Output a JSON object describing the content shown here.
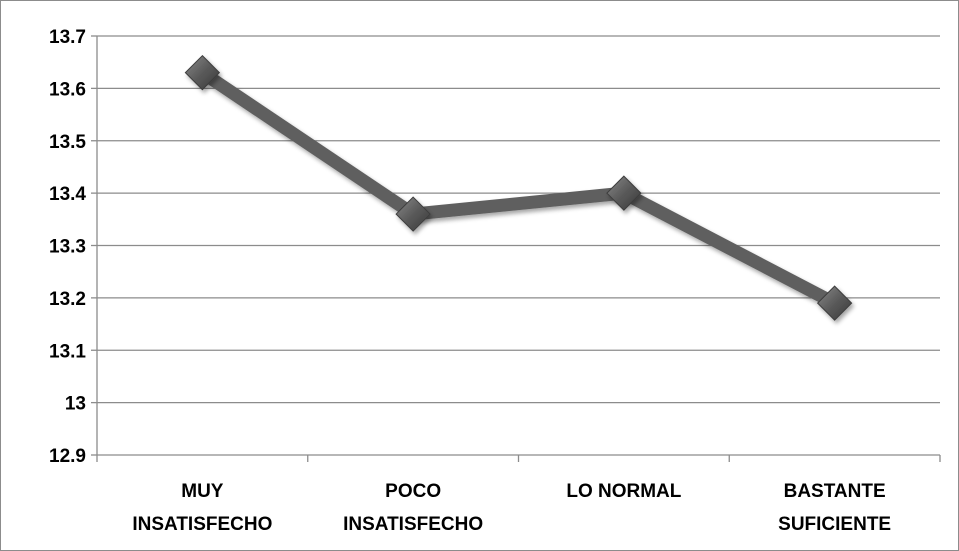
{
  "chart_data": {
    "type": "line",
    "categories": [
      [
        "MUY",
        "INSATISFECHO"
      ],
      [
        "POCO",
        "INSATISFECHO"
      ],
      [
        "LO NORMAL"
      ],
      [
        "BASTANTE",
        "SUFICIENTE"
      ]
    ],
    "series": [
      {
        "values": [
          13.63,
          13.36,
          13.4,
          13.19
        ],
        "color": "#5f5f5f",
        "marker": "diamond"
      }
    ],
    "y_ticks": [
      "12.9",
      "13",
      "13.1",
      "13.2",
      "13.3",
      "13.4",
      "13.5",
      "13.6",
      "13.7"
    ],
    "ylim": [
      12.9,
      13.7
    ],
    "grid": true,
    "legend": "none",
    "colors": {
      "line": "#5f5f5f",
      "marker": "#5a5a5a",
      "grid": "#8c8c8c",
      "axis": "#8c8c8c"
    }
  }
}
